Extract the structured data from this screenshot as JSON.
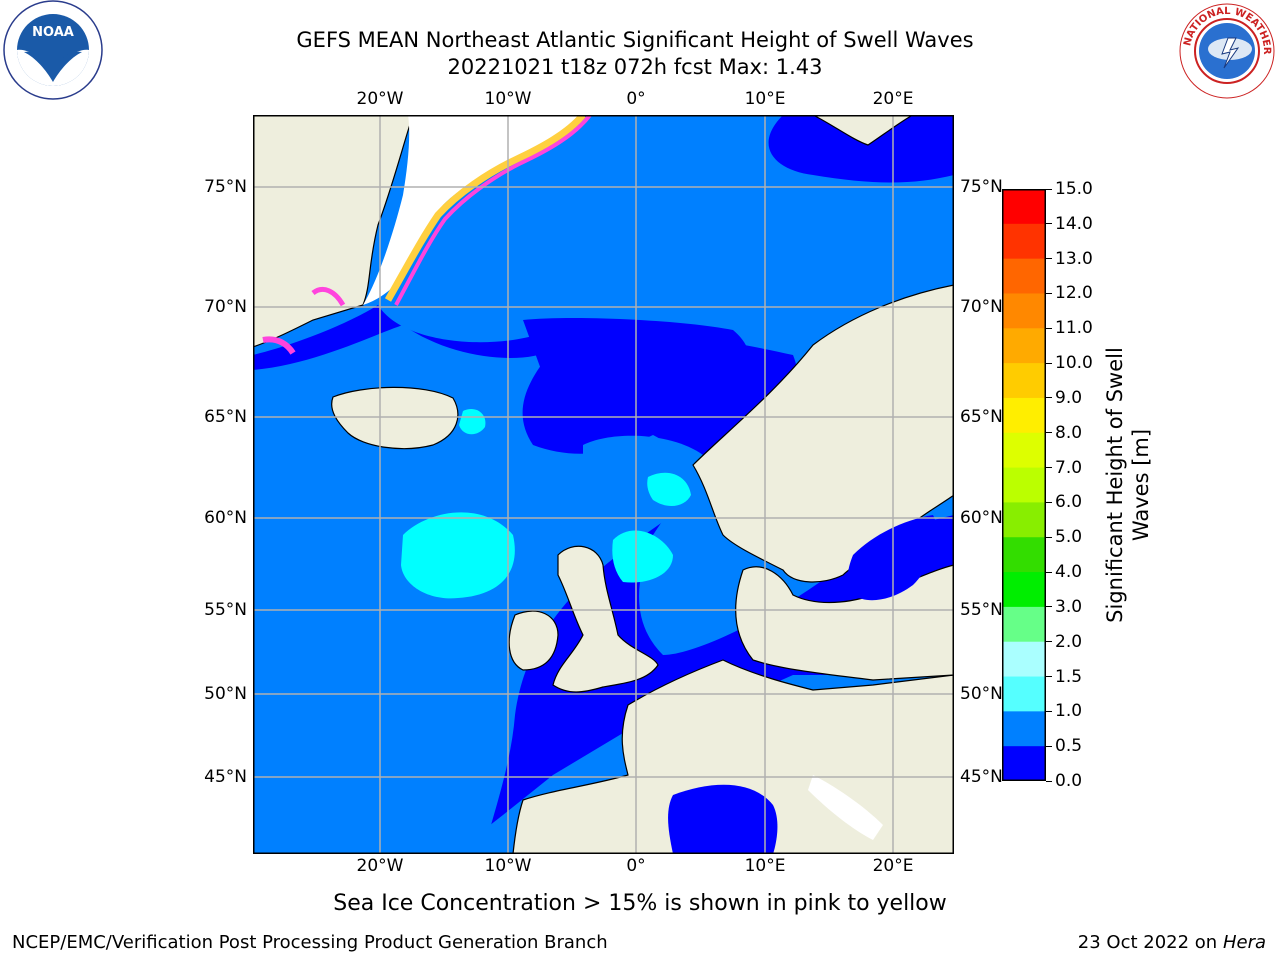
{
  "header": {
    "title_line1": "GEFS MEAN Northeast Atlantic Significant Height of Swell Waves",
    "title_line2": "20221021 t18z 072h fcst   Max: 1.43"
  },
  "logos": {
    "left": "NOAA",
    "right": "NATIONAL WEATHER SERVICE"
  },
  "map": {
    "lon_labels": [
      "20°W",
      "10°W",
      "0°",
      "10°E",
      "20°E"
    ],
    "lat_labels": [
      "75°N",
      "70°N",
      "65°N",
      "60°N",
      "55°N",
      "50°N",
      "45°N"
    ],
    "colors": {
      "ocean_base": "#0080ff",
      "ocean_low": "#0000ff",
      "ocean_cyan": "#00ffff",
      "land": "#eeeedd",
      "grid": "#b0b0b0",
      "ice_pink": "#ff44dd",
      "ice_yellow": "#ffd040"
    }
  },
  "colorbar": {
    "label": "Significant Height of Swell Waves [m]",
    "ticks": [
      "15.0",
      "14.0",
      "13.0",
      "12.0",
      "11.0",
      "10.0",
      "9.0",
      "8.0",
      "7.0",
      "6.0",
      "5.0",
      "4.0",
      "3.0",
      "2.0",
      "1.5",
      "1.0",
      "0.5",
      "0.0"
    ],
    "colors": [
      "#ff0000",
      "#ff3300",
      "#ff6600",
      "#ff8800",
      "#ffaa00",
      "#ffcc00",
      "#ffee00",
      "#ddff00",
      "#bbff00",
      "#88ee00",
      "#33dd00",
      "#00ee00",
      "#66ff88",
      "#aaffff",
      "#55ffff",
      "#00ffff",
      "#0080ff",
      "#0000ff"
    ]
  },
  "footer": {
    "note": "Sea Ice Concentration > 15% is shown in pink to yellow",
    "left": "NCEP/EMC/Verification Post Processing Product Generation Branch",
    "date": "23 Oct 2022 on",
    "system": "Hera"
  }
}
